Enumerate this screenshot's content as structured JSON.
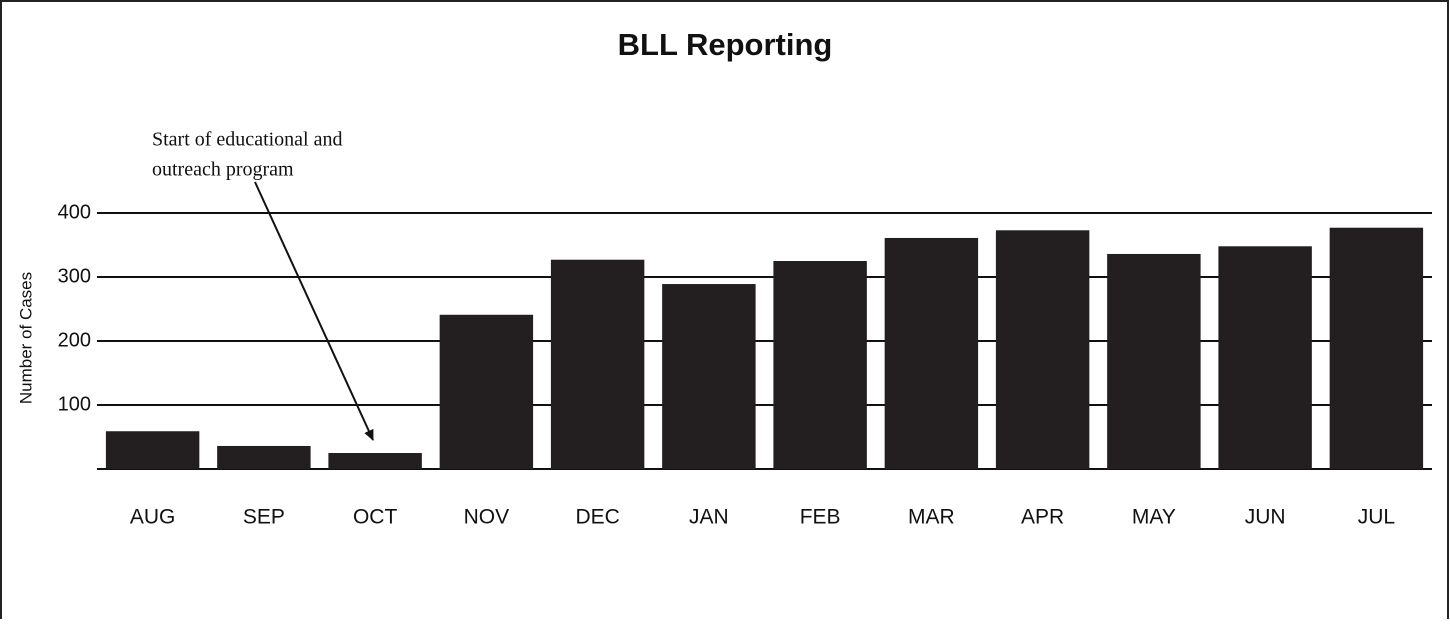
{
  "chart_data": {
    "type": "bar",
    "title": "BLL Reporting",
    "y_label": "Number of Cases",
    "annotation": [
      "Start of educational and",
      "outreach program"
    ],
    "categories": [
      "AUG",
      "SEP",
      "OCT",
      "NOV",
      "DEC",
      "JAN",
      "FEB",
      "MAR",
      "APR",
      "MAY",
      "JUN",
      "JUL"
    ],
    "values": [
      59,
      36,
      25,
      241,
      327,
      289,
      325,
      361,
      373,
      336,
      348,
      377
    ],
    "color": "#231f20",
    "ylim": [
      0,
      400
    ],
    "yticks": [
      100,
      200,
      300,
      400
    ],
    "grid": true
  }
}
